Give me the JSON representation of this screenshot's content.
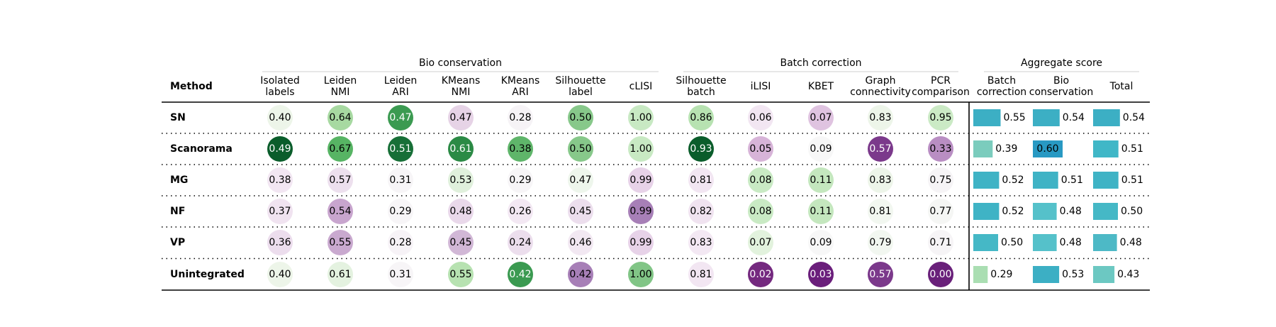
{
  "chart_data": {
    "type": "table",
    "groups": [
      {
        "label": "Bio conservation"
      },
      {
        "label": "Batch correction"
      },
      {
        "label": "Aggregate score"
      }
    ],
    "method_header": "Method",
    "columns": [
      {
        "label": [
          "Isolated",
          "labels"
        ],
        "group": 0,
        "kind": "circle"
      },
      {
        "label": [
          "Leiden",
          "NMI"
        ],
        "group": 0,
        "kind": "circle"
      },
      {
        "label": [
          "Leiden",
          "ARI"
        ],
        "group": 0,
        "kind": "circle"
      },
      {
        "label": [
          "KMeans",
          "NMI"
        ],
        "group": 0,
        "kind": "circle"
      },
      {
        "label": [
          "KMeans",
          "ARI"
        ],
        "group": 0,
        "kind": "circle"
      },
      {
        "label": [
          "Silhouette",
          "label"
        ],
        "group": 0,
        "kind": "circle"
      },
      {
        "label": [
          "cLISI"
        ],
        "group": 0,
        "kind": "circle"
      },
      {
        "label": [
          "Silhouette",
          "batch"
        ],
        "group": 1,
        "kind": "circle"
      },
      {
        "label": [
          "iLISI"
        ],
        "group": 1,
        "kind": "circle"
      },
      {
        "label": [
          "KBET"
        ],
        "group": 1,
        "kind": "circle"
      },
      {
        "label": [
          "Graph",
          "connectivity"
        ],
        "group": 1,
        "kind": "circle"
      },
      {
        "label": [
          "PCR",
          "comparison"
        ],
        "group": 1,
        "kind": "circle"
      },
      {
        "label": [
          "Batch",
          "correction"
        ],
        "group": 2,
        "kind": "bar"
      },
      {
        "label": [
          "Bio",
          "conservation"
        ],
        "group": 2,
        "kind": "bar"
      },
      {
        "label": [
          "Total"
        ],
        "group": 2,
        "kind": "bar"
      }
    ],
    "rows": [
      {
        "method": "SN",
        "values": [
          "0.40",
          "0.64",
          "0.47",
          "0.47",
          "0.28",
          "0.50",
          "1.00",
          "0.86",
          "0.06",
          "0.07",
          "0.83",
          "0.95",
          "0.55",
          "0.54",
          "0.54"
        ]
      },
      {
        "method": "Scanorama",
        "values": [
          "0.49",
          "0.67",
          "0.51",
          "0.61",
          "0.38",
          "0.50",
          "1.00",
          "0.93",
          "0.05",
          "0.09",
          "0.57",
          "0.33",
          "0.39",
          "0.60",
          "0.51"
        ]
      },
      {
        "method": "MG",
        "values": [
          "0.38",
          "0.57",
          "0.31",
          "0.53",
          "0.29",
          "0.47",
          "0.99",
          "0.81",
          "0.08",
          "0.11",
          "0.83",
          "0.75",
          "0.52",
          "0.51",
          "0.51"
        ]
      },
      {
        "method": "NF",
        "values": [
          "0.37",
          "0.54",
          "0.29",
          "0.48",
          "0.26",
          "0.45",
          "0.99",
          "0.82",
          "0.08",
          "0.11",
          "0.81",
          "0.77",
          "0.52",
          "0.48",
          "0.50"
        ]
      },
      {
        "method": "VP",
        "values": [
          "0.36",
          "0.55",
          "0.28",
          "0.45",
          "0.24",
          "0.46",
          "0.99",
          "0.83",
          "0.07",
          "0.09",
          "0.79",
          "0.71",
          "0.50",
          "0.48",
          "0.48"
        ]
      },
      {
        "method": "Unintegrated",
        "values": [
          "0.40",
          "0.61",
          "0.31",
          "0.55",
          "0.42",
          "0.42",
          "1.00",
          "0.81",
          "0.02",
          "0.03",
          "0.57",
          "0.00",
          "0.29",
          "0.53",
          "0.43"
        ]
      }
    ],
    "circle_colors": [
      [
        "#edf5e9",
        "#a7d9a1",
        "#3b9a51",
        "#e6d3e6",
        "#f6f3f6",
        "#87c88a",
        "#c8e9c3",
        "#b7e2b1",
        "#f2e6f2",
        "#dfc3e0",
        "#edf5e9",
        "#cbeac5"
      ],
      [
        "#0a5d2b",
        "#57b464",
        "#176f37",
        "#2b8a45",
        "#5fb56a",
        "#87c88a",
        "#c8e9c3",
        "#0a5d2b",
        "#d7b4d8",
        "#f7f7f7",
        "#7b398b",
        "#b98ec3"
      ],
      [
        "#f2e6f2",
        "#ede0ee",
        "#f7f5f7",
        "#e0f0dc",
        "#f7f5f7",
        "#eef6ec",
        "#e7d2e8",
        "#f2e6f2",
        "#c9eac4",
        "#c4e7be",
        "#edf5e9",
        "#f6f4f6"
      ],
      [
        "#f0e3f0",
        "#c8a5ce",
        "#f7f5f7",
        "#e9d8ea",
        "#f3e8f3",
        "#ecdeed",
        "#a77fb7",
        "#f0e3f0",
        "#c9eac4",
        "#c4e7be",
        "#f2f7f0",
        "#f5f6f4"
      ],
      [
        "#ecdded",
        "#c9a9cf",
        "#f7f3f7",
        "#d1b7d6",
        "#ecdeed",
        "#f2e8f2",
        "#e7d2e8",
        "#f3e8f3",
        "#e2f2dd",
        "#f7f7f7",
        "#f2f7f0",
        "#f6f4f6"
      ],
      [
        "#edf5e9",
        "#e4f2e0",
        "#f7f5f7",
        "#b7e2b1",
        "#3b9a51",
        "#a77fb7",
        "#81c586",
        "#f2e6f2",
        "#74297f",
        "#6a1e7b",
        "#7b398b",
        "#69207a"
      ]
    ],
    "bar_colors": [
      [
        "#3cafc4",
        "#3cafc4",
        "#3cafc4"
      ],
      [
        "#7bccbd",
        "#2899c3",
        "#40b7c7"
      ],
      [
        "#3fb3c5",
        "#3fb3c5",
        "#3fb3c5"
      ],
      [
        "#3fb3c5",
        "#55c1ca",
        "#45b8c6"
      ],
      [
        "#45b8c6",
        "#55c1ca",
        "#4db9c6"
      ],
      [
        "#aadeb2",
        "#3cafc4",
        "#6cc8c2"
      ]
    ]
  }
}
